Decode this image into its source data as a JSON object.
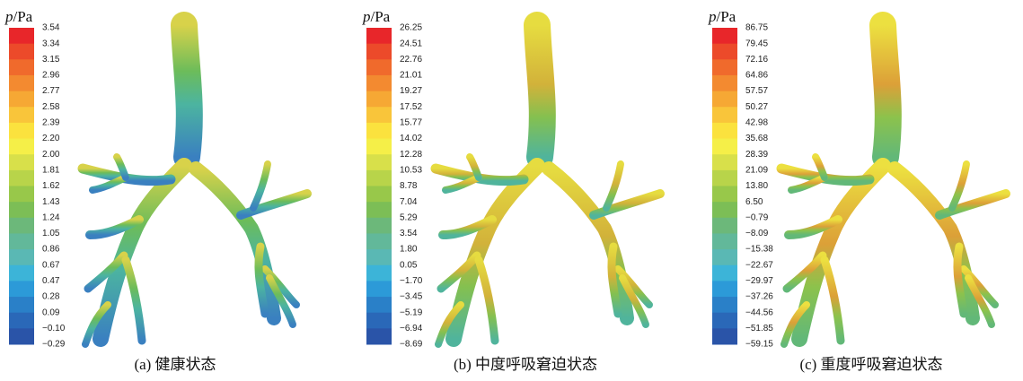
{
  "panels": [
    {
      "unit_symbol": "p",
      "unit": "/Pa",
      "scale_labels": [
        "3.54",
        "3.34",
        "3.15",
        "2.96",
        "2.77",
        "2.58",
        "2.39",
        "2.20",
        "2.00",
        "1.81",
        "1.62",
        "1.43",
        "1.24",
        "1.05",
        "0.86",
        "0.67",
        "0.47",
        "0.28",
        "0.09",
        "−0.10",
        "−0.29"
      ],
      "caption": "(a) 健康状态"
    },
    {
      "unit_symbol": "p",
      "unit": "/Pa",
      "scale_labels": [
        "26.25",
        "24.51",
        "22.76",
        "21.01",
        "19.27",
        "17.52",
        "15.77",
        "14.02",
        "12.28",
        "10.53",
        "8.78",
        "7.04",
        "5.29",
        "3.54",
        "1.80",
        "0.05",
        "−1.70",
        "−3.45",
        "−5.19",
        "−6.94",
        "−8.69"
      ],
      "caption": "(b) 中度呼吸窘迫状态"
    },
    {
      "unit_symbol": "p",
      "unit": "/Pa",
      "scale_labels": [
        "86.75",
        "79.45",
        "72.16",
        "64.86",
        "57.57",
        "50.27",
        "42.98",
        "35.68",
        "28.39",
        "21.09",
        "13.80",
        "6.50",
        "−0.79",
        "−8.09",
        "−15.38",
        "−22.67",
        "−29.97",
        "−37.26",
        "−44.56",
        "−51.85",
        "−59.15"
      ],
      "caption": "(c) 重度呼吸窘迫状态"
    }
  ]
}
